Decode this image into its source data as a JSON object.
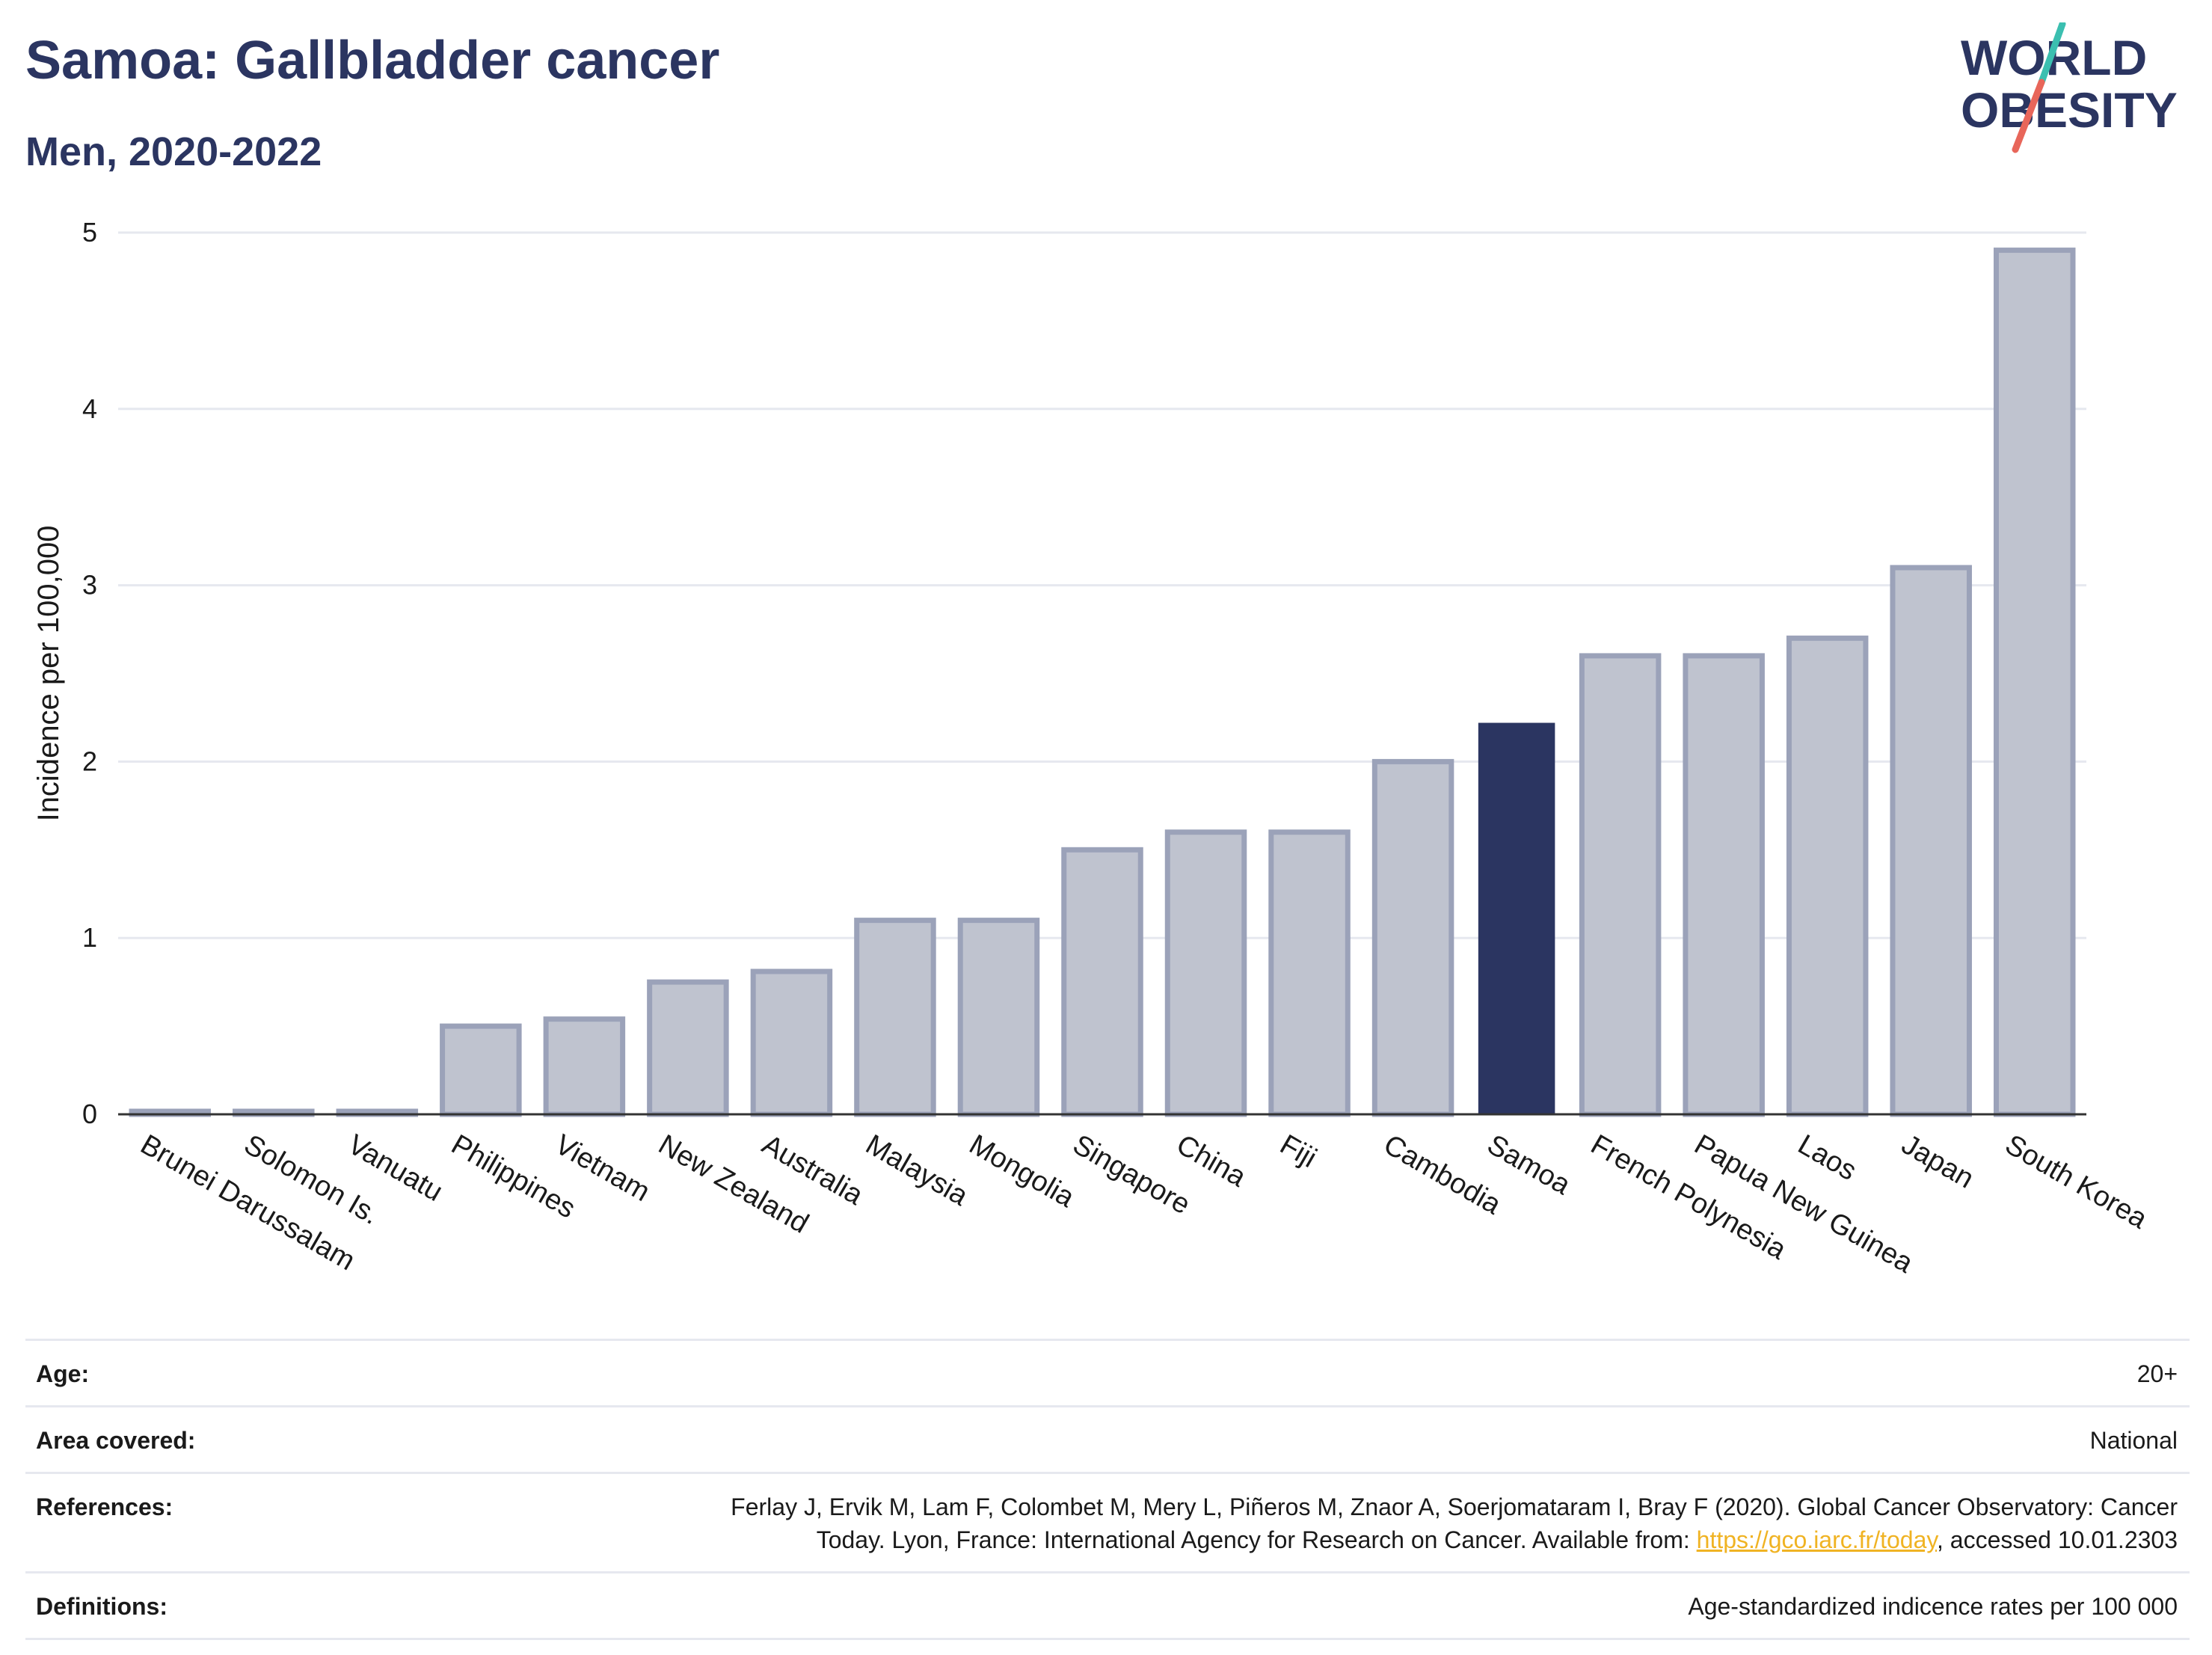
{
  "title": "Samoa: Gallbladder cancer",
  "subtitle": "Men, 2020-2022",
  "logo": {
    "line1": "WORLD",
    "line2": "OBESITY",
    "accent_teal": "#3bbfb0",
    "accent_red": "#e8665a",
    "text_color": "#2b3561"
  },
  "chart_data": {
    "type": "bar",
    "ylabel": "Incidence per 100,000",
    "xlabel": "",
    "ylim": [
      0,
      5
    ],
    "yticks": [
      0,
      1,
      2,
      3,
      4,
      5
    ],
    "grid": true,
    "highlight": "Samoa",
    "colors": {
      "bar": "#bfc3cf",
      "bar_border": "#9ba2b9",
      "highlight": "#2b3561"
    },
    "categories": [
      "Brunei Darussalam",
      "Solomon Is.",
      "Vanuatu",
      "Philippines",
      "Vietnam",
      "New Zealand",
      "Australia",
      "Malaysia",
      "Mongolia",
      "Singapore",
      "China",
      "Fiji",
      "Cambodia",
      "Samoa",
      "French Polynesia",
      "Papua New Guinea",
      "Laos",
      "Japan",
      "South Korea"
    ],
    "values": [
      0,
      0,
      0,
      0.5,
      0.54,
      0.75,
      0.81,
      1.1,
      1.1,
      1.5,
      1.6,
      1.6,
      2.0,
      2.22,
      2.6,
      2.6,
      2.7,
      3.1,
      4.9
    ]
  },
  "info": {
    "age_label": "Age:",
    "age_value": "20+",
    "area_label": "Area covered:",
    "area_value": "National",
    "references_label": "References:",
    "references_text_line1": "Ferlay J, Ervik M, Lam F, Colombet M, Mery L, Piñeros M, Znaor A, Soerjomataram I, Bray F (2020). Global Cancer Observatory: Cancer",
    "references_text_line2": "Today. Lyon, France: International Agency for Research on Cancer. Available from: ",
    "references_link": "https://gco.iarc.fr/today",
    "references_suffix": ", accessed 10.01.2303",
    "definitions_label": "Definitions:",
    "definitions_value": "Age-standardized indicence rates per 100 000"
  }
}
